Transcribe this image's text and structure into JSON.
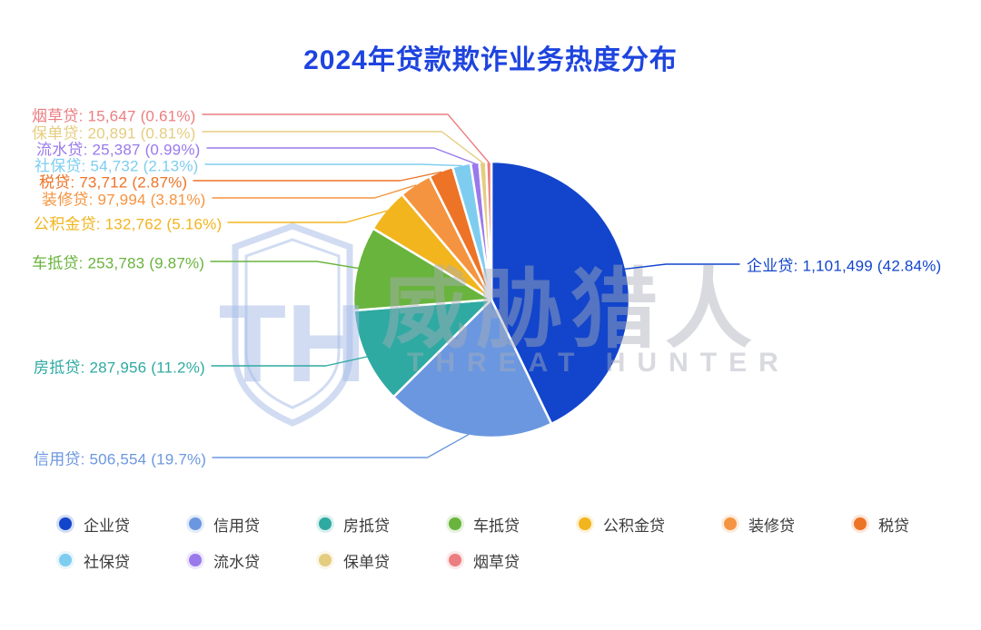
{
  "chart_data": {
    "type": "pie",
    "title": "2024年贷款欺诈业务热度分布",
    "title_color": "#1e44df",
    "legend_position": "bottom",
    "label_format": "name: value (pct%)",
    "slices": [
      {
        "name": "企业贷",
        "value": 1101499,
        "pct": "42.84",
        "color": "#1245cb"
      },
      {
        "name": "信用贷",
        "value": 506554,
        "pct": "19.7",
        "color": "#6b97e0"
      },
      {
        "name": "房抵贷",
        "value": 287956,
        "pct": "11.2",
        "color": "#2faaa2"
      },
      {
        "name": "车抵贷",
        "value": 253783,
        "pct": "9.87",
        "color": "#69b43d"
      },
      {
        "name": "公积金贷",
        "value": 132762,
        "pct": "5.16",
        "color": "#f2b51e"
      },
      {
        "name": "装修贷",
        "value": 97994,
        "pct": "3.81",
        "color": "#f59440"
      },
      {
        "name": "税贷",
        "value": 73712,
        "pct": "2.87",
        "color": "#ed7326"
      },
      {
        "name": "社保贷",
        "value": 54732,
        "pct": "2.13",
        "color": "#7ecdf0"
      },
      {
        "name": "流水贷",
        "value": 25387,
        "pct": "0.99",
        "color": "#9a79ec"
      },
      {
        "name": "保单贷",
        "value": 20891,
        "pct": "0.81",
        "color": "#e5cd80"
      },
      {
        "name": "烟草贷",
        "value": 15647,
        "pct": "0.61",
        "color": "#ec7d80"
      }
    ]
  },
  "watermark": {
    "monogram": "TH",
    "cn": "威胁猎人",
    "en": "THREAT HUNTER"
  }
}
